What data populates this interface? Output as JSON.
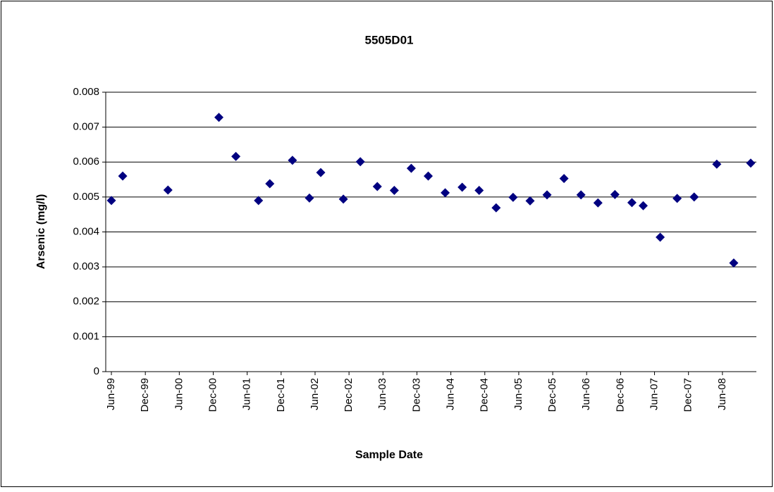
{
  "chart_data": {
    "type": "scatter",
    "title": "5505D01",
    "x_label": "Sample Date",
    "y_label": "Arsenic (mg/l)",
    "x": [
      "1999-06",
      "1999-08",
      "2000-04",
      "2001-01",
      "2001-04",
      "2001-08",
      "2001-10",
      "2002-02",
      "2002-05",
      "2002-07",
      "2002-11",
      "2003-02",
      "2003-05",
      "2003-08",
      "2003-11",
      "2004-02",
      "2004-05",
      "2004-08",
      "2004-11",
      "2005-02",
      "2005-05",
      "2005-08",
      "2005-11",
      "2006-02",
      "2006-05",
      "2006-08",
      "2006-11",
      "2007-02",
      "2007-04",
      "2007-07",
      "2007-10",
      "2008-01",
      "2008-05",
      "2008-08",
      "2008-11"
    ],
    "values": [
      0.0049,
      0.0056,
      0.0052,
      0.00728,
      0.00616,
      0.0049,
      0.00538,
      0.00605,
      0.00497,
      0.0057,
      0.00494,
      0.00601,
      0.0053,
      0.00519,
      0.00582,
      0.0056,
      0.00512,
      0.00528,
      0.00519,
      0.00469,
      0.00499,
      0.00489,
      0.00506,
      0.00553,
      0.00506,
      0.00483,
      0.00507,
      0.00484,
      0.00475,
      0.00385,
      0.00496,
      0.005,
      0.00594,
      0.00311,
      0.00597
    ],
    "color": "#000080",
    "xlim": [
      "1999-05",
      "2008-12"
    ],
    "xticks": [
      {
        "value": "1999-06",
        "label": "Jun-99"
      },
      {
        "value": "1999-12",
        "label": "Dec-99"
      },
      {
        "value": "2000-06",
        "label": "Jun-00"
      },
      {
        "value": "2000-12",
        "label": "Dec-00"
      },
      {
        "value": "2001-06",
        "label": "Jun-01"
      },
      {
        "value": "2001-12",
        "label": "Dec-01"
      },
      {
        "value": "2002-06",
        "label": "Jun-02"
      },
      {
        "value": "2002-12",
        "label": "Dec-02"
      },
      {
        "value": "2003-06",
        "label": "Jun-03"
      },
      {
        "value": "2003-12",
        "label": "Dec-03"
      },
      {
        "value": "2004-06",
        "label": "Jun-04"
      },
      {
        "value": "2004-12",
        "label": "Dec-04"
      },
      {
        "value": "2005-06",
        "label": "Jun-05"
      },
      {
        "value": "2005-12",
        "label": "Dec-05"
      },
      {
        "value": "2006-06",
        "label": "Jun-06"
      },
      {
        "value": "2006-12",
        "label": "Dec-06"
      },
      {
        "value": "2007-06",
        "label": "Jun-07"
      },
      {
        "value": "2007-12",
        "label": "Dec-07"
      },
      {
        "value": "2008-06",
        "label": "Jun-08"
      }
    ],
    "ylim": [
      0,
      0.008
    ],
    "yticks": [
      0,
      0.001,
      0.002,
      0.003,
      0.004,
      0.005,
      0.006,
      0.007,
      0.008
    ],
    "grid": true
  }
}
